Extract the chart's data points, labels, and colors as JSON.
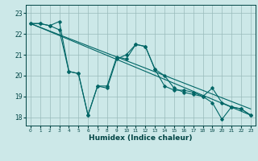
{
  "title": "",
  "xlabel": "Humidex (Indice chaleur)",
  "background_color": "#cce8e8",
  "grid_color": "#99bbbb",
  "line_color": "#006666",
  "xlim": [
    -0.5,
    23.5
  ],
  "ylim": [
    17.6,
    23.4
  ],
  "yticks": [
    18,
    19,
    20,
    21,
    22,
    23
  ],
  "xticks": [
    0,
    1,
    2,
    3,
    4,
    5,
    6,
    7,
    8,
    9,
    10,
    11,
    12,
    13,
    14,
    15,
    16,
    17,
    18,
    19,
    20,
    21,
    22,
    23
  ],
  "line1_x": [
    0,
    1,
    2,
    3,
    4,
    5,
    6,
    7,
    8,
    9,
    10,
    11,
    12,
    13,
    14,
    15,
    16,
    17,
    18,
    19,
    20,
    21,
    22,
    23
  ],
  "line1_y": [
    22.5,
    22.5,
    22.4,
    22.6,
    20.2,
    20.1,
    18.1,
    19.5,
    19.5,
    20.9,
    20.8,
    21.5,
    21.4,
    20.3,
    19.5,
    19.3,
    19.3,
    19.2,
    19.0,
    18.7,
    17.9,
    18.5,
    18.4,
    18.1
  ],
  "line2_x": [
    0,
    1,
    2,
    3,
    4,
    5,
    6,
    7,
    8,
    9,
    10,
    11,
    12,
    13,
    14,
    15,
    16,
    17,
    18,
    19,
    20,
    21,
    22,
    23
  ],
  "line2_y": [
    22.5,
    22.5,
    22.4,
    22.2,
    20.2,
    20.1,
    18.1,
    19.5,
    19.4,
    20.8,
    21.0,
    21.5,
    21.4,
    20.3,
    20.0,
    19.4,
    19.2,
    19.1,
    19.0,
    19.4,
    18.7,
    18.5,
    18.4,
    18.1
  ],
  "line3_x": [
    0,
    23
  ],
  "line3_y": [
    22.5,
    18.1
  ],
  "line4_x": [
    0,
    23
  ],
  "line4_y": [
    22.5,
    18.4
  ]
}
